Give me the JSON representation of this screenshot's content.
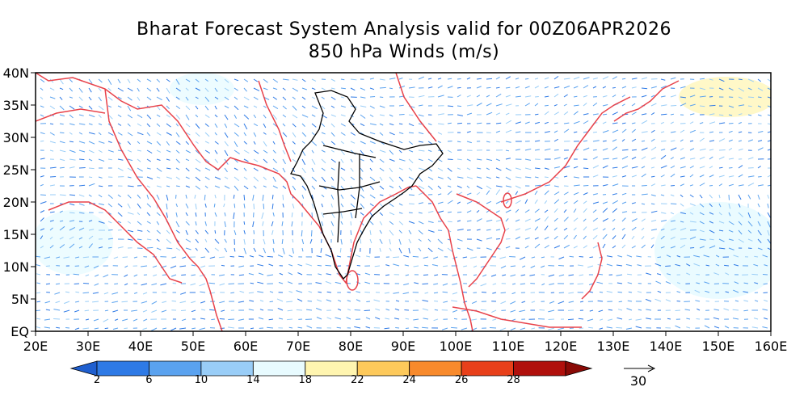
{
  "title_line1": "Bharat Forecast System Analysis valid for 00Z06APR2026",
  "title_line2": "850 hPa Winds (m/s)",
  "map": {
    "lon_range": [
      20,
      160
    ],
    "lat_range": [
      0,
      40
    ],
    "x_ticks": [
      "20E",
      "30E",
      "40E",
      "50E",
      "60E",
      "70E",
      "80E",
      "90E",
      "100E",
      "110E",
      "120E",
      "130E",
      "140E",
      "150E",
      "160E"
    ],
    "y_ticks": [
      "EQ",
      "5N",
      "10N",
      "15N",
      "20N",
      "25N",
      "30N",
      "35N",
      "40N"
    ],
    "coastline_color": "#e8424a",
    "india_boundary_color": "#000000"
  },
  "colorbar": {
    "levels": [
      "2",
      "6",
      "10",
      "14",
      "18",
      "22",
      "24",
      "26",
      "28"
    ],
    "colors": [
      "#1f5fcf",
      "#2e7ae6",
      "#5aa2ef",
      "#99cdf7",
      "#e8fbff",
      "#fff5b0",
      "#fdc95b",
      "#f88a2c",
      "#e8401a",
      "#b0100c",
      "#8a0a06"
    ]
  },
  "reference_vector": {
    "label": "30",
    "value": 30
  }
}
